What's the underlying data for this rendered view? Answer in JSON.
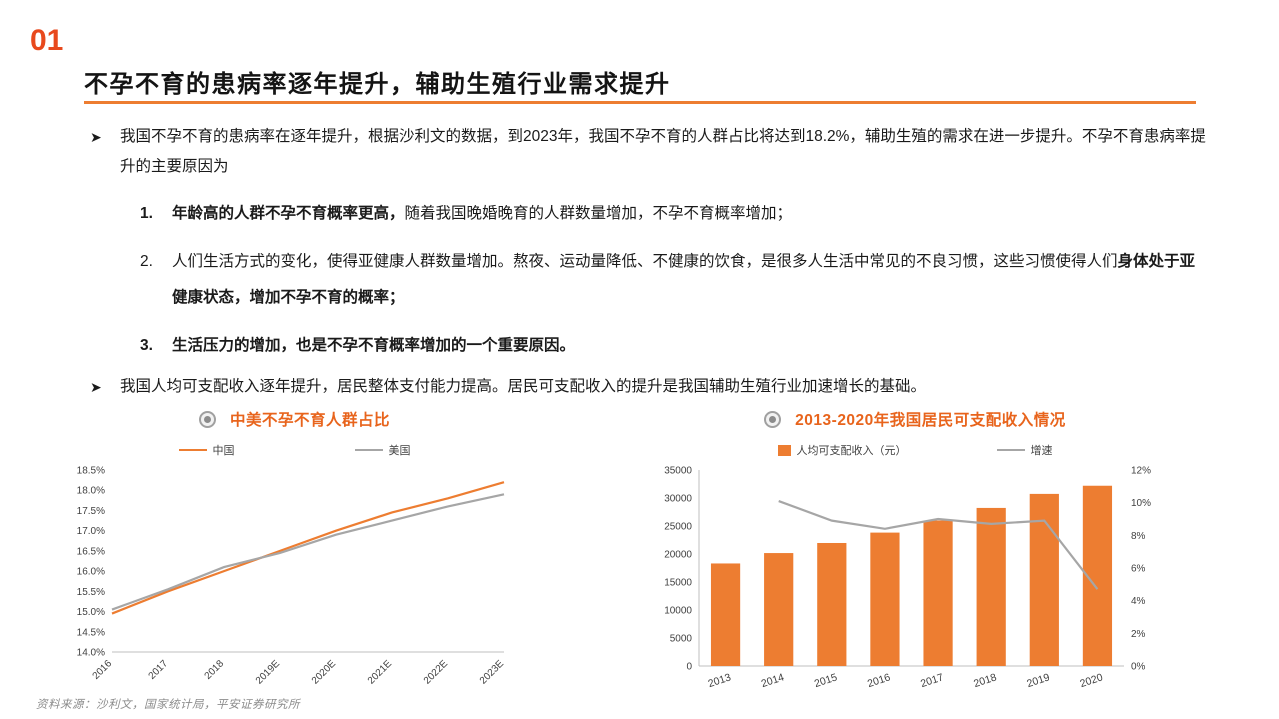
{
  "page": {
    "section_number": "01",
    "title": "不孕不育的患病率逐年提升，辅助生殖行业需求提升",
    "footer": "资料来源：沙利文，国家统计局，平安证券研究所"
  },
  "colors": {
    "accent_orange": "#ED7D31",
    "section_red": "#E8491D",
    "title_orange": "#E8641C",
    "series_gray": "#A6A6A6"
  },
  "content": {
    "bullet1": "我国不孕不育的患病率在逐年提升，根据沙利文的数据，到2023年，我国不孕不育的人群占比将达到18.2%，辅助生殖的需求在进一步提升。不孕不育患病率提升的主要原因为",
    "items": [
      {
        "num": "1.",
        "pre": "",
        "bold": "年龄高的人群不孕不育概率更高，",
        "post": "随着我国晚婚晚育的人群数量增加，不孕不育概率增加；"
      },
      {
        "num": "2.",
        "pre": "人们生活方式的变化，使得亚健康人群数量增加。熬夜、运动量降低、不健康的饮食，是很多人生活中常见的不良习惯，这些习惯使得人们",
        "bold": "身体处于亚健康状态，增加不孕不育的概率；",
        "post": ""
      },
      {
        "num": "3.",
        "pre": "",
        "bold": "生活压力的增加，也是不孕不育概率增加的一个重要原因。",
        "post": ""
      }
    ],
    "bullet2": "我国人均可支配收入逐年提升，居民整体支付能力提高。居民可支配收入的提升是我国辅助生殖行业加速增长的基础。"
  },
  "chart_data": [
    {
      "type": "line",
      "title": "中美不孕不育人群占比",
      "categories": [
        "2016",
        "2017",
        "2018",
        "2019E",
        "2020E",
        "2021E",
        "2022E",
        "2023E"
      ],
      "series": [
        {
          "name": "中国",
          "color": "#ED7D31",
          "values": [
            14.95,
            15.5,
            16.0,
            16.5,
            17.0,
            17.45,
            17.8,
            18.2
          ]
        },
        {
          "name": "美国",
          "color": "#A6A6A6",
          "values": [
            15.05,
            15.55,
            16.1,
            16.45,
            16.9,
            17.25,
            17.6,
            17.9
          ]
        }
      ],
      "ylim": [
        14.0,
        18.5
      ],
      "ytick_step": 0.5,
      "ytick_format": "percent1",
      "legend_position": "top",
      "grid": false
    },
    {
      "type": "bar-line",
      "title": "2013-2020年我国居民可支配收入情况",
      "categories": [
        "2013",
        "2014",
        "2015",
        "2016",
        "2017",
        "2018",
        "2019",
        "2020"
      ],
      "bar_series": {
        "name": "人均可支配收入（元）",
        "color": "#ED7D31",
        "values": [
          18311,
          20167,
          21966,
          23821,
          25974,
          28228,
          30733,
          32189
        ]
      },
      "line_series": {
        "name": "增速",
        "color": "#A6A6A6",
        "values": [
          null,
          10.1,
          8.9,
          8.4,
          9.0,
          8.7,
          8.9,
          4.7
        ]
      },
      "left_ylim": [
        0,
        35000
      ],
      "left_ytick_step": 5000,
      "right_ylim": [
        0,
        12
      ],
      "right_ytick_step": 2,
      "legend_position": "top",
      "grid": false
    }
  ]
}
